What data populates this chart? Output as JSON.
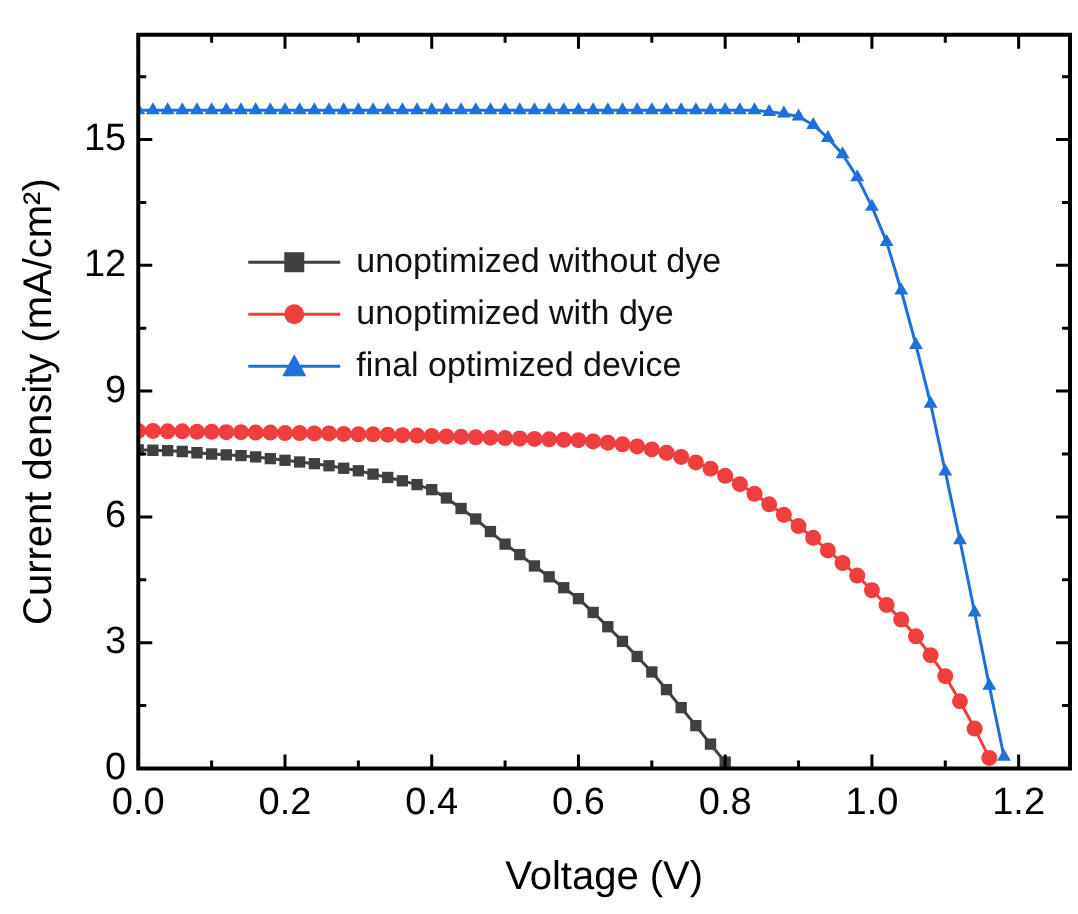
{
  "chart_data": {
    "type": "line",
    "xlabel": "Voltage (V)",
    "ylabel": "Current density (mA/cm²)",
    "xlim": [
      0,
      1.27
    ],
    "ylim": [
      0,
      17.5
    ],
    "xticks": [
      {
        "value": 0,
        "label": "0.0"
      },
      {
        "value": 0.1,
        "label": null
      },
      {
        "value": 0.2,
        "label": "0.2"
      },
      {
        "value": 0.3,
        "label": null
      },
      {
        "value": 0.4,
        "label": "0.4"
      },
      {
        "value": 0.5,
        "label": null
      },
      {
        "value": 0.6,
        "label": "0.6"
      },
      {
        "value": 0.7,
        "label": null
      },
      {
        "value": 0.8,
        "label": "0.8"
      },
      {
        "value": 0.9,
        "label": null
      },
      {
        "value": 1,
        "label": "1.0"
      },
      {
        "value": 1.1,
        "label": null
      },
      {
        "value": 1.2,
        "label": "1.2"
      }
    ],
    "yticks": [
      0,
      {
        "value": 1.5,
        "label": null
      },
      3,
      {
        "value": 4.5,
        "label": null
      },
      6,
      {
        "value": 7.5,
        "label": null
      },
      9,
      {
        "value": 10.5,
        "label": null
      },
      12,
      {
        "value": 13.5,
        "label": null
      },
      15,
      {
        "value": 16.5,
        "label": null
      }
    ],
    "grid": false,
    "legend": "left",
    "line_style": "solid",
    "series": [
      {
        "name": "unoptimized without dye",
        "color": "#404040",
        "marker": "square",
        "x": [
          0,
          0.02,
          0.04,
          0.06,
          0.08,
          0.1,
          0.12,
          0.14,
          0.16,
          0.18,
          0.2,
          0.22,
          0.24,
          0.26,
          0.28,
          0.3,
          0.32,
          0.34,
          0.36,
          0.38,
          0.4,
          0.42,
          0.44,
          0.46,
          0.48,
          0.5,
          0.52,
          0.54,
          0.56,
          0.58,
          0.6,
          0.62,
          0.64,
          0.66,
          0.68,
          0.7,
          0.72,
          0.74,
          0.76,
          0.78,
          0.8
        ],
        "values": [
          7.6,
          7.59,
          7.58,
          7.56,
          7.53,
          7.5,
          7.48,
          7.46,
          7.43,
          7.39,
          7.35,
          7.31,
          7.27,
          7.22,
          7.16,
          7.1,
          7.02,
          6.94,
          6.86,
          6.77,
          6.65,
          6.45,
          6.2,
          5.95,
          5.65,
          5.35,
          5.1,
          4.83,
          4.57,
          4.31,
          4.05,
          3.72,
          3.38,
          3.03,
          2.67,
          2.3,
          1.88,
          1.45,
          1.02,
          0.58,
          0.15
        ]
      },
      {
        "name": "unoptimized with dye",
        "color": "#ef3e3e",
        "marker": "circle",
        "x": [
          0,
          0.02,
          0.04,
          0.06,
          0.08,
          0.1,
          0.12,
          0.14,
          0.16,
          0.18,
          0.2,
          0.22,
          0.24,
          0.26,
          0.28,
          0.3,
          0.32,
          0.34,
          0.36,
          0.38,
          0.4,
          0.42,
          0.44,
          0.46,
          0.48,
          0.5,
          0.52,
          0.54,
          0.56,
          0.58,
          0.6,
          0.62,
          0.64,
          0.66,
          0.68,
          0.7,
          0.72,
          0.74,
          0.76,
          0.78,
          0.8,
          0.82,
          0.84,
          0.86,
          0.88,
          0.9,
          0.92,
          0.94,
          0.96,
          0.98,
          1,
          1.02,
          1.04,
          1.06,
          1.08,
          1.1,
          1.12,
          1.14,
          1.16
        ],
        "values": [
          8.05,
          8.05,
          8.04,
          8.04,
          8.03,
          8.03,
          8.02,
          8.02,
          8.01,
          8.01,
          8,
          8,
          7.99,
          7.99,
          7.98,
          7.97,
          7.97,
          7.96,
          7.95,
          7.94,
          7.93,
          7.92,
          7.91,
          7.9,
          7.89,
          7.88,
          7.87,
          7.86,
          7.85,
          7.84,
          7.83,
          7.8,
          7.77,
          7.73,
          7.68,
          7.61,
          7.53,
          7.43,
          7.3,
          7.15,
          6.98,
          6.78,
          6.55,
          6.3,
          6.05,
          5.78,
          5.5,
          5.2,
          4.9,
          4.6,
          4.25,
          3.9,
          3.55,
          3.15,
          2.7,
          2.2,
          1.6,
          0.95,
          0.25
        ]
      },
      {
        "name": "final optimized device",
        "color": "#1f6fdc",
        "marker": "triangle",
        "x": [
          0,
          0.02,
          0.04,
          0.06,
          0.08,
          0.1,
          0.12,
          0.14,
          0.16,
          0.18,
          0.2,
          0.22,
          0.24,
          0.26,
          0.28,
          0.3,
          0.32,
          0.34,
          0.36,
          0.38,
          0.4,
          0.42,
          0.44,
          0.46,
          0.48,
          0.5,
          0.52,
          0.54,
          0.56,
          0.58,
          0.6,
          0.62,
          0.64,
          0.66,
          0.68,
          0.7,
          0.72,
          0.74,
          0.76,
          0.78,
          0.8,
          0.82,
          0.84,
          0.86,
          0.88,
          0.9,
          0.92,
          0.94,
          0.96,
          0.98,
          1,
          1.02,
          1.04,
          1.06,
          1.08,
          1.1,
          1.12,
          1.14,
          1.16,
          1.18
        ],
        "values": [
          15.7,
          15.7,
          15.7,
          15.7,
          15.7,
          15.7,
          15.7,
          15.7,
          15.7,
          15.7,
          15.7,
          15.7,
          15.7,
          15.7,
          15.7,
          15.7,
          15.7,
          15.7,
          15.7,
          15.7,
          15.7,
          15.7,
          15.7,
          15.7,
          15.7,
          15.7,
          15.7,
          15.7,
          15.7,
          15.7,
          15.7,
          15.7,
          15.7,
          15.7,
          15.7,
          15.7,
          15.7,
          15.7,
          15.7,
          15.7,
          15.7,
          15.7,
          15.7,
          15.66,
          15.62,
          15.55,
          15.35,
          15.04,
          14.65,
          14.1,
          13.4,
          12.56,
          11.4,
          10.1,
          8.7,
          7.08,
          5.44,
          3.72,
          1.97,
          0.28
        ]
      }
    ]
  }
}
